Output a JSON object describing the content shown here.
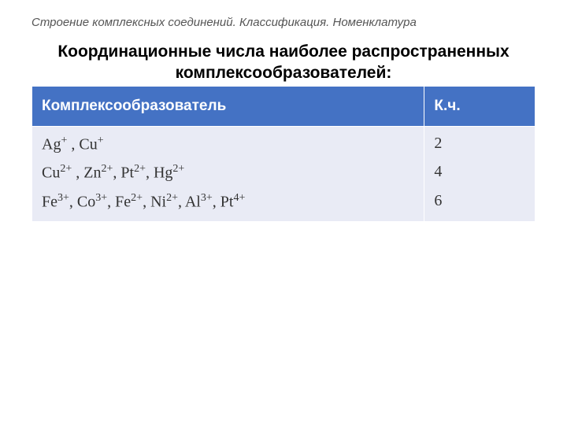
{
  "breadcrumb": "Строение комплексных соединений. Классификация. Номенклатура",
  "title": "Координационные числа наиболее распространенных комплексообразователей:",
  "table": {
    "header_bg": "#4472c4",
    "header_fg": "#ffffff",
    "cell_bg": "#e9ebf5",
    "cell_fg": "#333333",
    "columns": [
      "Комплексообразователь",
      "К.ч."
    ],
    "rows": [
      {
        "ions_html": "Ag<sup>+</sup> , Cu<sup>+</sup>",
        "cn": "2"
      },
      {
        "ions_html": "Cu<sup>2+</sup> , Zn<sup>2+</sup>, Pt<sup>2+</sup>, Hg<sup>2+</sup>",
        "cn": "4"
      },
      {
        "ions_html": "Fe<sup>3+</sup>, Co<sup>3+</sup>, Fe<sup>2+</sup>, Ni<sup>2+</sup>, Al<sup>3+</sup>, Pt<sup>4+</sup>",
        "cn": "6"
      }
    ]
  }
}
